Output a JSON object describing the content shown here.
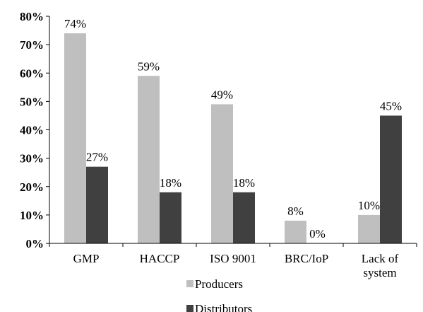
{
  "chart_data": {
    "type": "bar",
    "categories": [
      "GMP",
      "HACCP",
      "ISO 9001",
      "BRC/IoP",
      "Lack of system"
    ],
    "category_lines": [
      [
        "GMP"
      ],
      [
        "HACCP"
      ],
      [
        "ISO 9001"
      ],
      [
        "BRC/IoP"
      ],
      [
        "Lack of",
        "system"
      ]
    ],
    "series": [
      {
        "name": "Producers",
        "color": "#bfbfbf",
        "values": [
          74,
          59,
          49,
          8,
          10
        ],
        "labels": [
          "74%",
          "59%",
          "49%",
          "8%",
          "10%"
        ]
      },
      {
        "name": "Distributors",
        "color": "#404040",
        "values": [
          27,
          18,
          18,
          0,
          45
        ],
        "labels": [
          "27%",
          "18%",
          "18%",
          "0%",
          "45%"
        ]
      }
    ],
    "ylim": [
      0,
      80
    ],
    "yticks": [
      0,
      10,
      20,
      30,
      40,
      50,
      60,
      70,
      80
    ],
    "ytick_labels": [
      "0%",
      "10%",
      "20%",
      "30%",
      "40%",
      "50%",
      "60%",
      "70%",
      "80%"
    ],
    "grid": false,
    "legend_position": "bottom-center",
    "title": "",
    "xlabel": "",
    "ylabel": ""
  }
}
